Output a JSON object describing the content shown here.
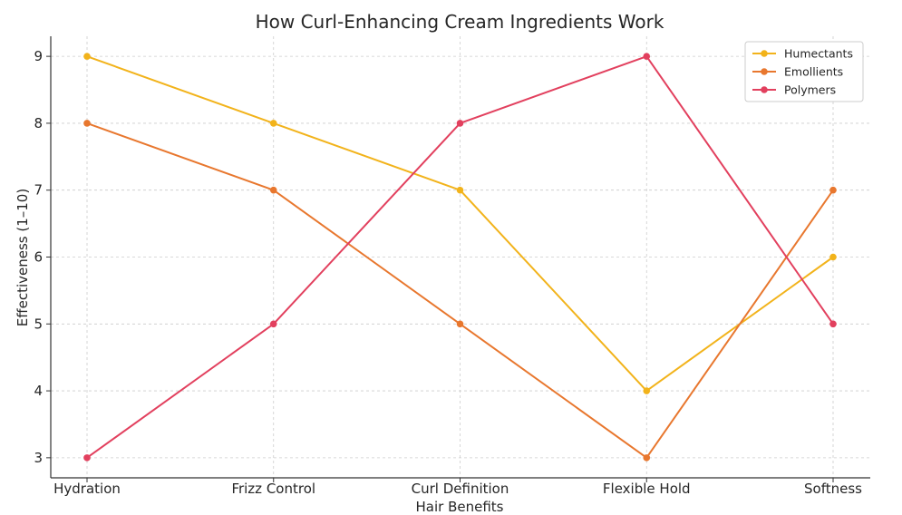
{
  "chart_data": {
    "type": "line",
    "title": "How Curl-Enhancing Cream Ingredients Work",
    "xlabel": "Hair Benefits",
    "ylabel": "Effectiveness (1–10)",
    "categories": [
      "Hydration",
      "Frizz Control",
      "Curl Definition",
      "Flexible Hold",
      "Softness"
    ],
    "yticks": [
      "3",
      "4",
      "5",
      "6",
      "7",
      "8",
      "9"
    ],
    "ylim": [
      2.7,
      9.3
    ],
    "grid": true,
    "legend_position": "top-right",
    "series": [
      {
        "name": "Humectants",
        "color": "#f2b31b",
        "values": [
          9,
          8,
          7,
          4,
          6
        ]
      },
      {
        "name": "Emollients",
        "color": "#e8772e",
        "values": [
          8,
          7,
          5,
          3,
          7
        ]
      },
      {
        "name": "Polymers",
        "color": "#e2405e",
        "values": [
          3,
          5,
          8,
          9,
          5
        ]
      }
    ]
  }
}
